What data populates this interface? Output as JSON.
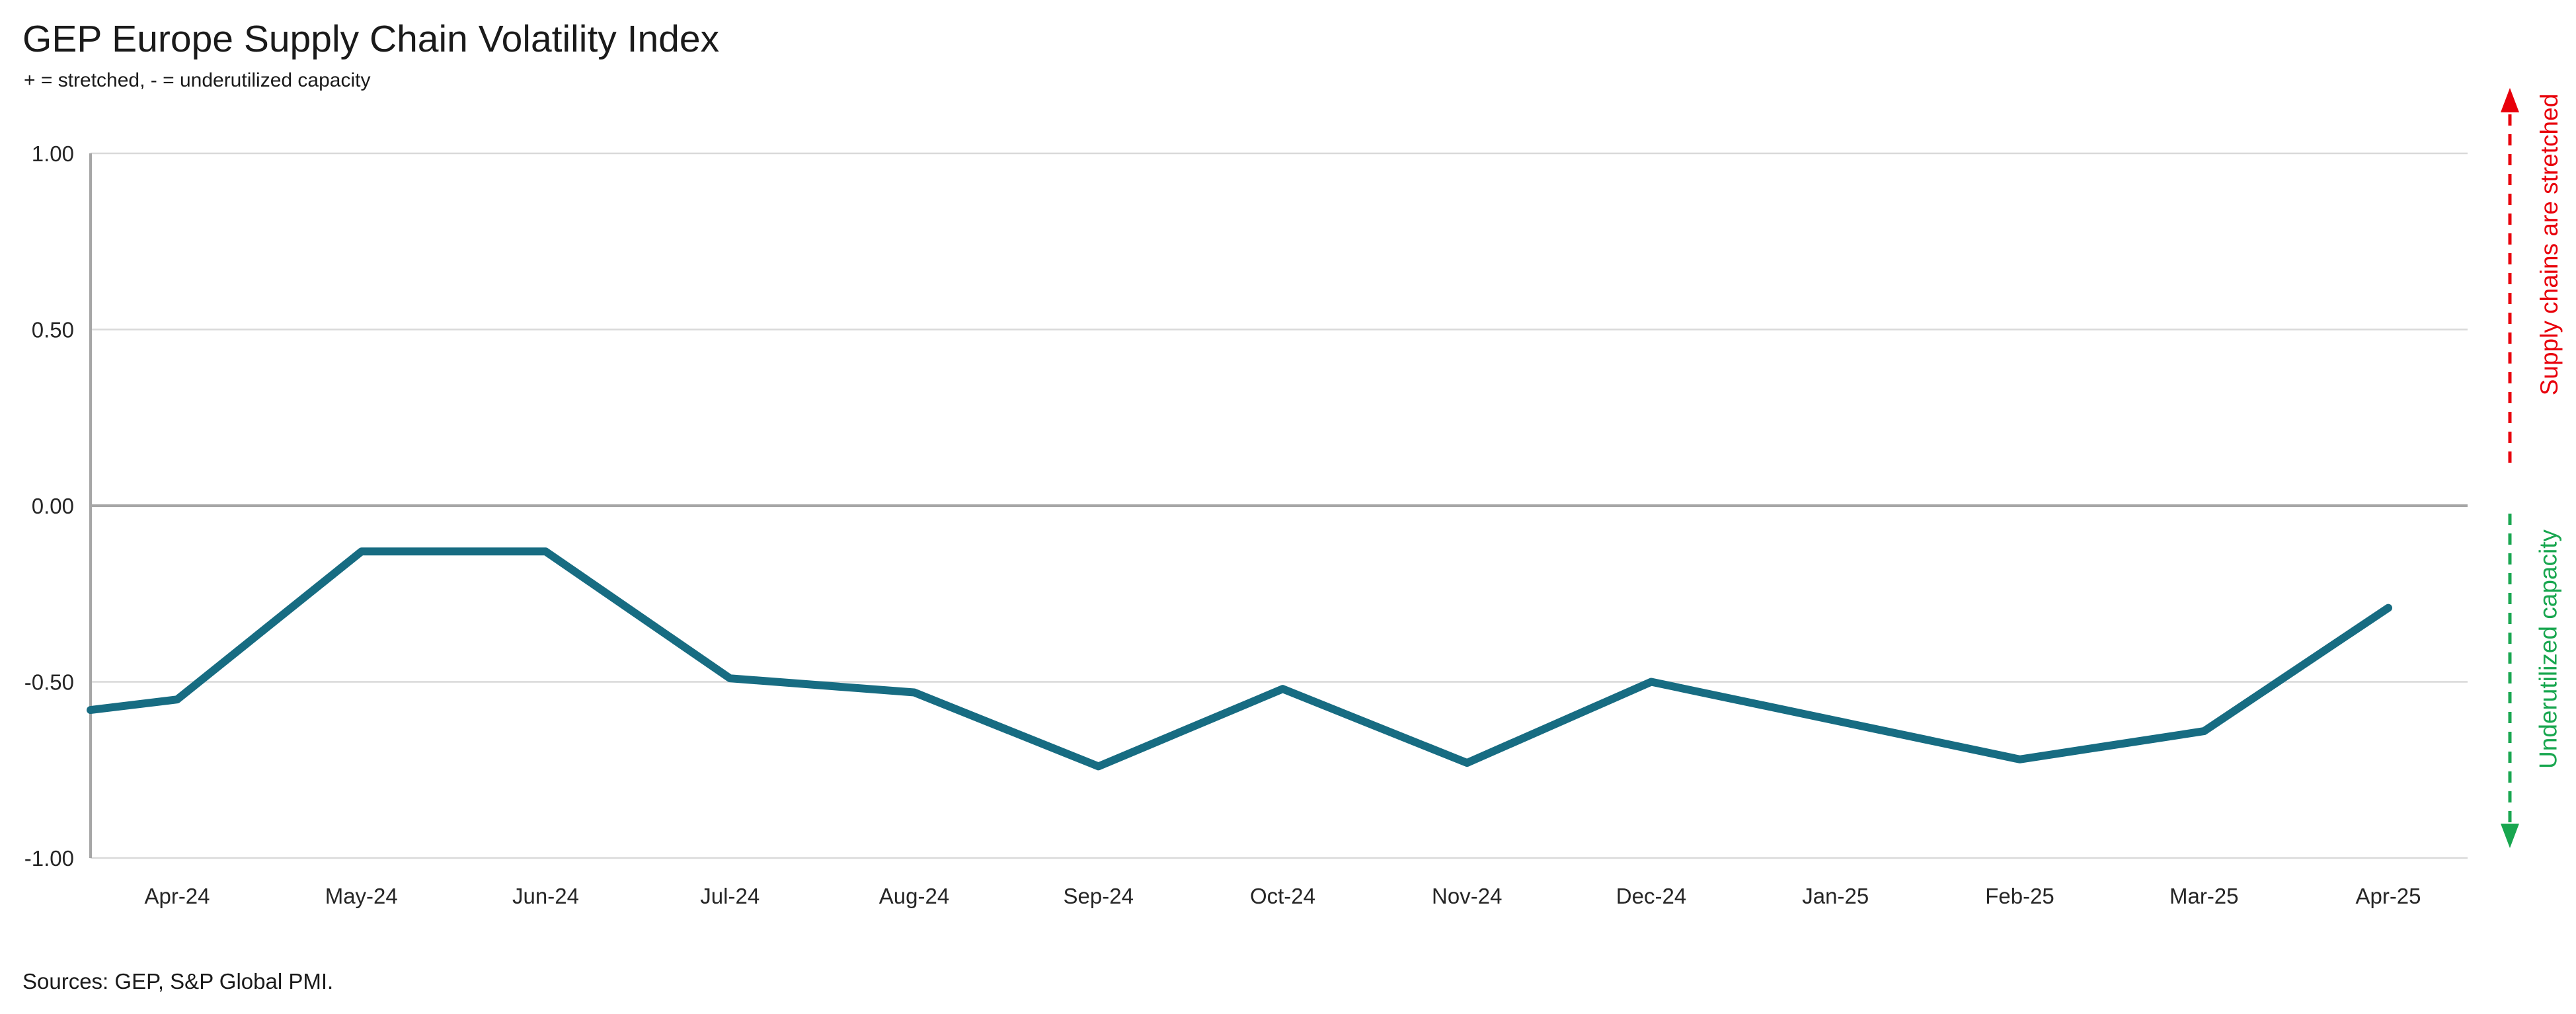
{
  "header": {
    "title": "GEP Europe Supply Chain Volatility Index",
    "subtitle": "+ = stretched, - = underutilized capacity"
  },
  "footer": {
    "sources": "Sources: GEP, S&P Global PMI."
  },
  "annotations": {
    "upper": {
      "text": "Supply chains are stretched",
      "color": "#e8000b",
      "direction": "up"
    },
    "lower": {
      "text": "Underutilized capacity",
      "color": "#18a64f",
      "direction": "down"
    }
  },
  "chart_data": {
    "type": "line",
    "title": "GEP Europe Supply Chain Volatility Index",
    "subtitle": "+ = stretched, - = underutilized capacity",
    "categories": [
      "Apr-24",
      "May-24",
      "Jun-24",
      "Jul-24",
      "Aug-24",
      "Sep-24",
      "Oct-24",
      "Nov-24",
      "Dec-24",
      "Jan-25",
      "Feb-25",
      "Mar-25",
      "Apr-25"
    ],
    "values": [
      -0.55,
      -0.13,
      -0.13,
      -0.49,
      -0.53,
      -0.74,
      -0.52,
      -0.73,
      -0.5,
      -0.61,
      -0.72,
      -0.64,
      -0.29
    ],
    "clipped_start": {
      "note": "line enters at left plot edge before Apr-24",
      "value": -0.58
    },
    "ylim": [
      -1.0,
      1.0
    ],
    "yticks": {
      "values": [
        1.0,
        0.5,
        0.0,
        -0.5,
        -1.0
      ],
      "labels": [
        "1.00",
        "0.50",
        "0.00",
        "-0.50",
        "-1.00"
      ]
    },
    "grid": "horizontal",
    "legend": "none",
    "line_color": "#176c82",
    "gridline_color": "#d9d9d9",
    "zero_line_color": "#a6a6a6",
    "axis_line_color": "#a6a6a6",
    "tick_label_color": "#262626"
  }
}
